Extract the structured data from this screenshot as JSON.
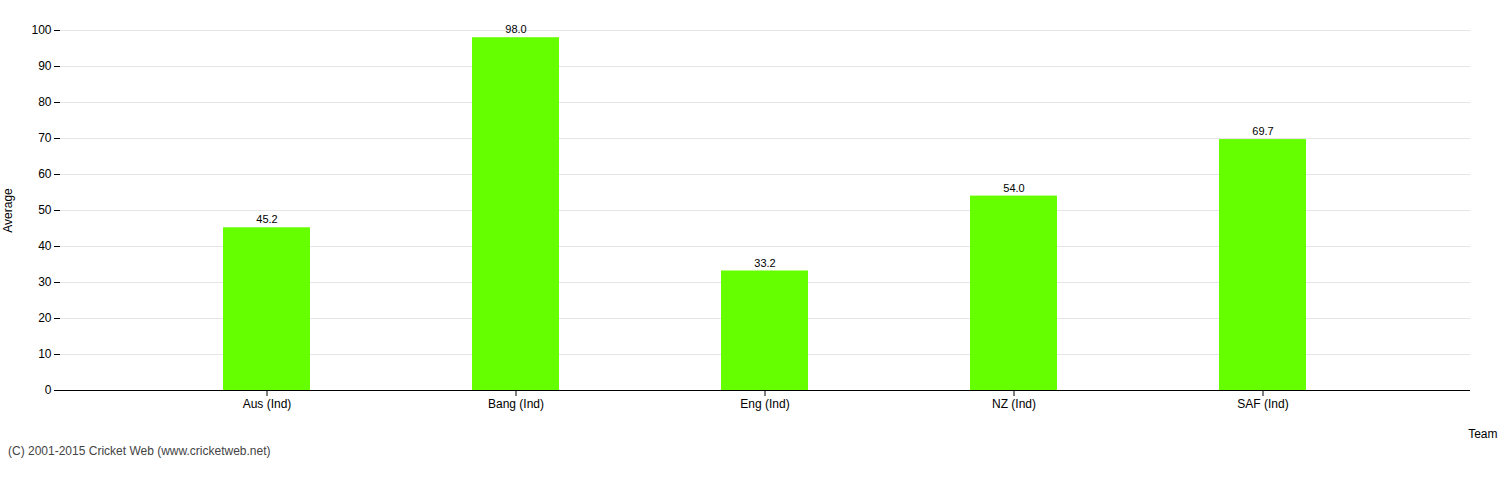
{
  "chart_data": {
    "type": "bar",
    "categories": [
      "Aus (Ind)",
      "Bang (Ind)",
      "Eng (Ind)",
      "NZ (Ind)",
      "SAF (Ind)"
    ],
    "values": [
      45.2,
      98.0,
      33.2,
      54.0,
      69.7
    ],
    "value_labels": [
      "45.2",
      "98.0",
      "33.2",
      "54.0",
      "69.7"
    ],
    "color": "#66ff00",
    "xlabel": "Team",
    "ylabel": "Average",
    "ylim": [
      0,
      100
    ],
    "yticks": [
      0,
      10,
      20,
      30,
      40,
      50,
      60,
      70,
      80,
      90,
      100
    ],
    "grid": true,
    "data_labels": true,
    "annotations": [
      "(C) 2001-2015 Cricket Web (www.cricketweb.net)"
    ]
  }
}
